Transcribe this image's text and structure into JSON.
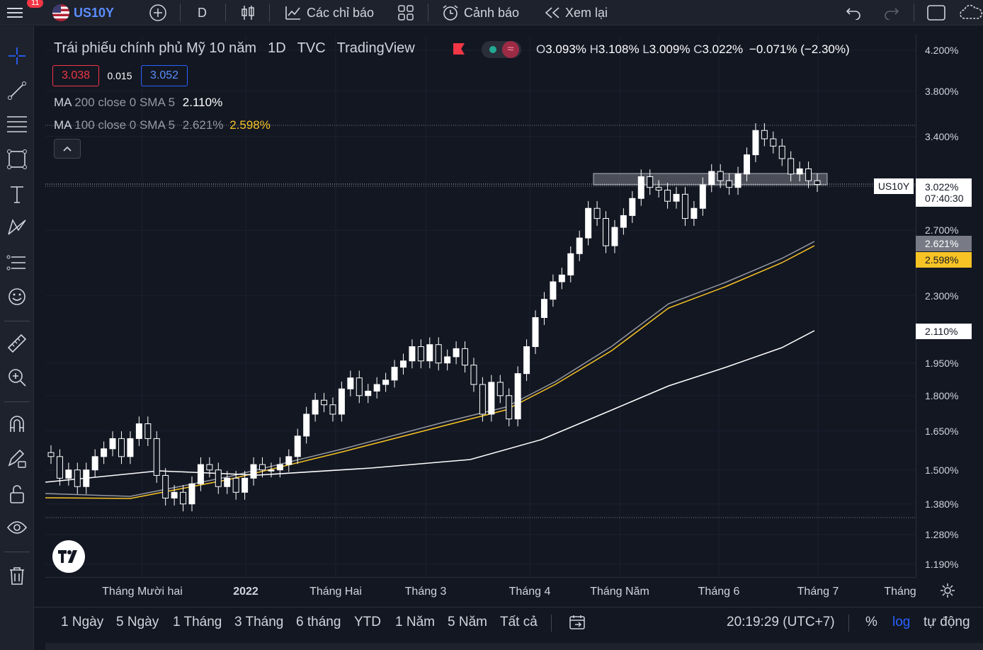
{
  "topbar": {
    "notifications": "11",
    "symbol": "US10Y",
    "interval": "D",
    "indicators_label": "Các chỉ báo",
    "alerts_label": "Cảnh báo",
    "replay_label": "Xem lại"
  },
  "legend": {
    "title": "Trái phiếu chính phủ Mỹ 10 năm",
    "interval": "1D",
    "exchange": "TVC",
    "source": "TradingView",
    "ohlc": {
      "o_label": "O",
      "o": "3.093%",
      "h_label": "H",
      "h": "3.108%",
      "l_label": "L",
      "l": "3.009%",
      "c_label": "C",
      "c": "3.022%",
      "change": "−0.071% (−2.30%)"
    },
    "bid": "3.038",
    "spread": "0.015",
    "ask": "3.052",
    "ma200": {
      "name": "MA",
      "params": "200 close 0 SMA 5",
      "value": "2.110%"
    },
    "ma100": {
      "name": "MA",
      "params": "100 close 0 SMA 5",
      "value_gray": "2.621%",
      "value_yellow": "2.598%"
    }
  },
  "price_axis": {
    "labels": [
      "4.200%",
      "3.800%",
      "3.400%",
      "2.700%",
      "2.300%",
      "1.950%",
      "1.800%",
      "1.650%",
      "1.500%",
      "1.380%",
      "1.280%",
      "1.190%"
    ],
    "current_symbol": "US10Y",
    "current_price": "3.022%",
    "countdown": "07:40:30",
    "ma100_gray_tag": "2.621%",
    "ma100_yellow_tag": "2.598%",
    "ma200_tag": "2.110%"
  },
  "time_axis": {
    "labels": [
      "Tháng Mười hai",
      "2022",
      "Tháng Hai",
      "Tháng 3",
      "Tháng 4",
      "Tháng Năm",
      "Tháng 6",
      "Tháng 7",
      "Tháng"
    ]
  },
  "bottombar": {
    "ranges": [
      "1 Ngày",
      "5 Ngày",
      "1 Tháng",
      "3 Tháng",
      "6 tháng",
      "YTD",
      "1 Năm",
      "5 Năm",
      "Tất cả"
    ],
    "clock": "20:19:29 (UTC+7)",
    "percent": "%",
    "log": "log",
    "auto": "tự động"
  },
  "colors": {
    "background": "#131722",
    "up_candle": "#ffffff",
    "ma200": "#ffffff",
    "ma100_gray": "#9598a1",
    "ma100_yellow": "#f7c325",
    "accent_blue": "#2962ff",
    "down_red": "#f23645"
  },
  "chart_data": {
    "type": "candlestick",
    "scale": "log",
    "series": [
      {
        "name": "US10Y",
        "values": [
          1.55,
          1.47,
          1.5,
          1.44,
          1.5,
          1.55,
          1.58,
          1.62,
          1.55,
          1.62,
          1.68,
          1.62,
          1.48,
          1.4,
          1.42,
          1.38,
          1.45,
          1.52,
          1.5,
          1.44,
          1.47,
          1.42,
          1.47,
          1.52,
          1.5,
          1.5,
          1.52,
          1.55,
          1.63,
          1.72,
          1.78,
          1.76,
          1.72,
          1.83,
          1.88,
          1.8,
          1.82,
          1.85,
          1.87,
          1.93,
          1.96,
          2.03,
          1.96,
          2.04,
          1.95,
          1.98,
          2.02,
          1.94,
          1.85,
          1.72,
          1.86,
          1.8,
          1.7,
          1.9,
          2.03,
          2.18,
          2.28,
          2.38,
          2.42,
          2.55,
          2.65,
          2.85,
          2.78,
          2.6,
          2.72,
          2.8,
          2.92,
          3.08,
          3.0,
          2.98,
          2.9,
          2.95,
          2.78,
          2.85,
          3.02,
          3.12,
          3.05,
          3.0,
          3.1,
          3.25,
          3.45,
          3.38,
          3.32,
          3.22,
          3.1,
          3.14,
          3.05,
          3.022
        ]
      },
      {
        "name": "MA 100",
        "values": [
          1.43,
          1.52,
          1.6,
          1.72,
          1.95,
          2.3,
          2.621
        ]
      },
      {
        "name": "MA 200",
        "values": [
          1.5,
          1.52,
          1.55,
          1.65,
          1.8,
          2.11
        ]
      }
    ],
    "ylim": [
      1.19,
      4.2
    ],
    "x_labels": [
      "Tháng Mười hai",
      "2022",
      "Tháng Hai",
      "Tháng 3",
      "Tháng 4",
      "Tháng Năm",
      "Tháng 6",
      "Tháng 7"
    ],
    "last_price": 3.022
  }
}
